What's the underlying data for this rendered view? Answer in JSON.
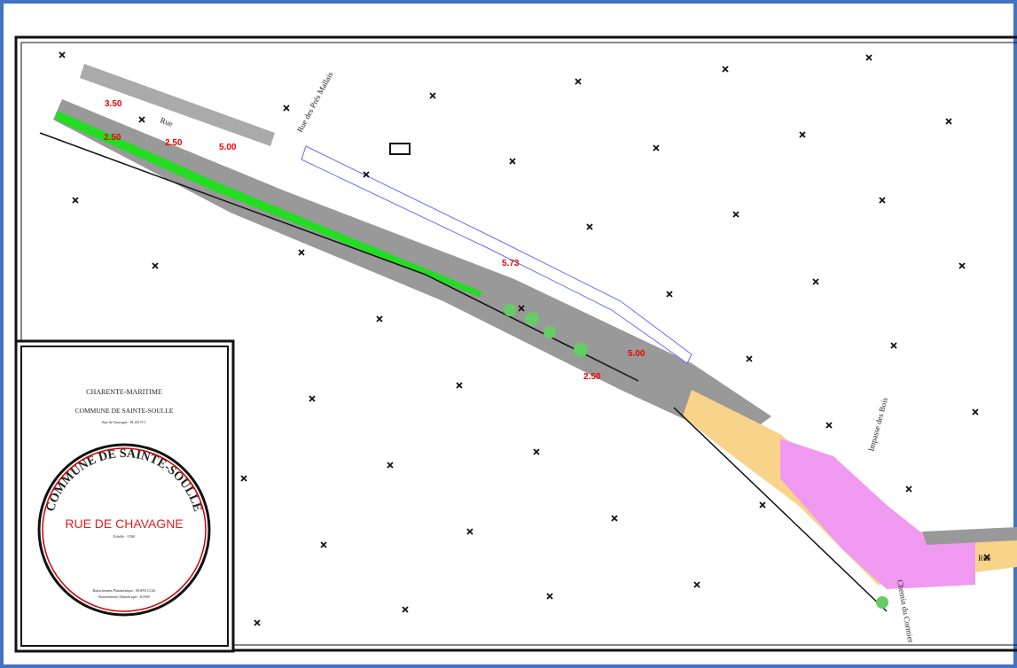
{
  "cartouche": {
    "department": "CHARENTE-MARITIME",
    "commune": "COMMUNE DE SAINTE-SOULLE",
    "subtitle": "Rue de Chavagne - PLAN N°1",
    "seal_text": "COMMUNE DE SAINTE-SOULLE",
    "title": "RUE DE CHAVAGNE",
    "scale": "Echelle : 1/500",
    "planimetry": "Rattachement Planimétrique : RGF93 CC46",
    "altimetry": "Rattachement Altimétrique : IGN69"
  },
  "map_labels": [
    "Rue des Prés Mallais",
    "Rue",
    "Impasse des Bois",
    "Rue",
    "Chemin du Cormier"
  ],
  "dimensions": [
    "3.50",
    "2.50",
    "2.50",
    "5.00",
    "5.73",
    "5.00",
    "2.50"
  ]
}
